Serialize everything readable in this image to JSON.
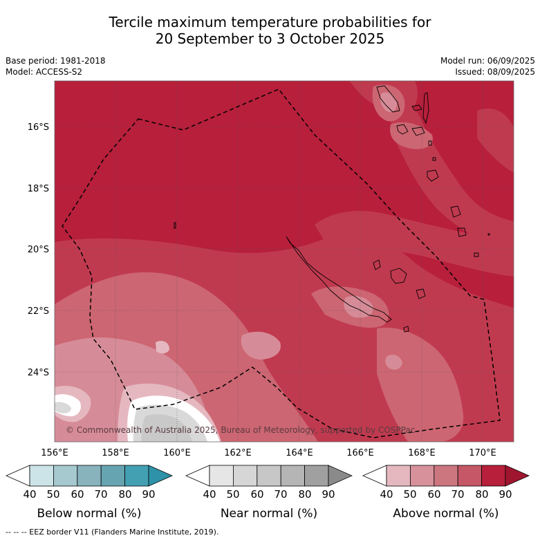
{
  "title": {
    "line1": "Tercile maximum temperature probabilities for",
    "line2": "20 September to 3 October 2025"
  },
  "meta": {
    "base_period": "Base period: 1981-2018",
    "model": "Model: ACCESS-S2",
    "model_run": "Model run: 06/09/2025",
    "issued": "Issued: 08/09/2025"
  },
  "map": {
    "lat_labels": [
      "16°S",
      "18°S",
      "20°S",
      "22°S",
      "24°S"
    ],
    "lon_labels": [
      "156°E",
      "158°E",
      "160°E",
      "162°E",
      "164°E",
      "166°E",
      "168°E",
      "170°E"
    ],
    "copyright": "© Commonwealth of Australia 2025, Bureau of Meteorology, supported by COSPPac",
    "colors": {
      "land_outline": "#000000",
      "eez_line": "#000000"
    }
  },
  "legends": [
    {
      "label": "Below normal (%)",
      "ticks": [
        "40",
        "50",
        "60",
        "70",
        "80",
        "90"
      ],
      "colors": [
        "#ffffff",
        "#cce3e8",
        "#a6c8cf",
        "#88b3bd",
        "#67a4b2",
        "#43a0b3",
        "#2e93a8"
      ]
    },
    {
      "label": "Near normal (%)",
      "ticks": [
        "40",
        "50",
        "60",
        "70",
        "80",
        "90"
      ],
      "colors": [
        "#ffffff",
        "#e6e6e6",
        "#d6d6d6",
        "#c7c7c7",
        "#b5b5b5",
        "#a0a0a0",
        "#8a8a8a"
      ]
    },
    {
      "label": "Above normal (%)",
      "ticks": [
        "40",
        "50",
        "60",
        "70",
        "80",
        "90"
      ],
      "colors": [
        "#ffffff",
        "#e5b8c0",
        "#d7919b",
        "#cc7680",
        "#c55766",
        "#b71f3b",
        "#a0162f"
      ]
    }
  ],
  "footer": "--  --  -- EEZ border V11 (Flanders Marine Institute, 2019)."
}
